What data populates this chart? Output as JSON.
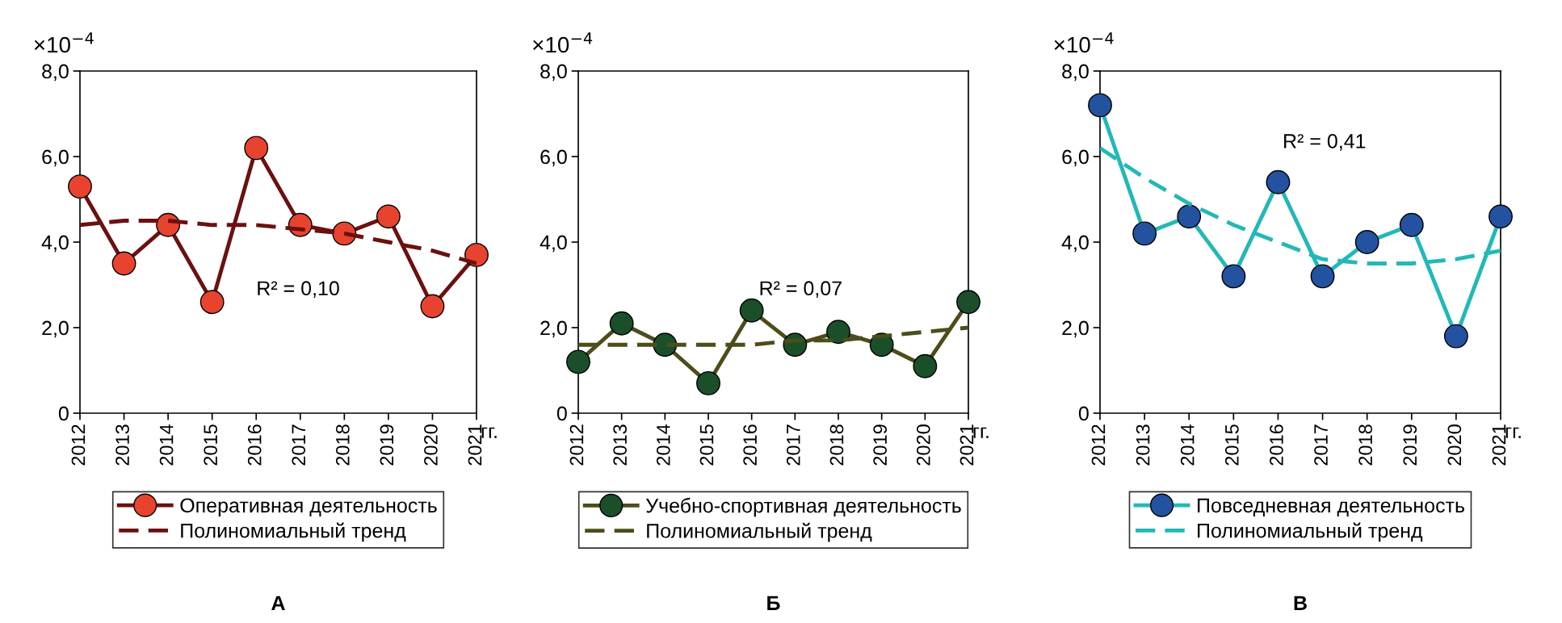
{
  "chart_data": [
    {
      "type": "line",
      "title": "А",
      "xlabel": "гг.",
      "ylabel": "×10$^{−4}$",
      "categories": [
        "2012",
        "2013",
        "2014",
        "2015",
        "2016",
        "2017",
        "2018",
        "2019",
        "2020",
        "2021"
      ],
      "ylim": [
        0,
        8
      ],
      "yticks": [
        0,
        {
          "value": 2,
          "label": "2,0"
        },
        {
          "value": 4,
          "label": "4,0"
        },
        {
          "value": 6,
          "label": "6,0"
        },
        {
          "value": 8,
          "label": "8,0"
        }
      ],
      "grid": false,
      "legend": "bottom",
      "annotations": [
        "R² = 0,10"
      ],
      "series": [
        {
          "name": "Оперативная деятельность",
          "color": "#6b1010",
          "colors": [
            "#e8432e",
            "#e8432e",
            "#e8432e",
            "#e8432e",
            "#e8432e",
            "#e8432e",
            "#e8432e",
            "#e8432e",
            "#e8432e",
            "#e8432e"
          ],
          "marker": "circle",
          "line_style": "solid",
          "values": [
            5.3,
            3.5,
            4.4,
            2.6,
            6.2,
            4.4,
            4.2,
            4.6,
            2.5,
            3.7
          ]
        },
        {
          "name": "Полиномиальный тренд",
          "color": "#6b1010",
          "marker": "none",
          "line_style": "dashed",
          "values": [
            4.4,
            4.5,
            4.5,
            4.4,
            4.4,
            4.3,
            4.2,
            4.0,
            3.8,
            3.5
          ]
        }
      ]
    },
    {
      "type": "line",
      "title": "Б",
      "xlabel": "гг.",
      "ylabel": "×10$^{−4}$",
      "categories": [
        "2012",
        "2013",
        "2014",
        "2015",
        "2016",
        "2017",
        "2018",
        "2019",
        "2020",
        "2021"
      ],
      "ylim": [
        0,
        8
      ],
      "yticks": [
        0,
        {
          "value": 2,
          "label": "2,0"
        },
        {
          "value": 4,
          "label": "4,0"
        },
        {
          "value": 6,
          "label": "6,0"
        },
        {
          "value": 8,
          "label": "8,0"
        }
      ],
      "grid": false,
      "legend": "bottom",
      "annotations": [
        "R² = 0,07"
      ],
      "series": [
        {
          "name": "Учебно-спортивная деятельность",
          "color": "#4d4d1a",
          "colors": [
            "#1a4f2a",
            "#1a4f2a",
            "#1a4f2a",
            "#1a4f2a",
            "#1a4f2a",
            "#1a4f2a",
            "#1a4f2a",
            "#1a4f2a",
            "#1a4f2a",
            "#1a4f2a"
          ],
          "marker": "circle",
          "line_style": "solid",
          "values": [
            1.2,
            2.1,
            1.6,
            0.7,
            2.4,
            1.6,
            1.9,
            1.6,
            1.1,
            2.6
          ]
        },
        {
          "name": "Полиномиальный тренд",
          "color": "#4d4d1a",
          "marker": "none",
          "line_style": "dashed",
          "values": [
            1.6,
            1.6,
            1.6,
            1.6,
            1.6,
            1.7,
            1.7,
            1.8,
            1.9,
            2.0
          ]
        }
      ]
    },
    {
      "type": "line",
      "title": "В",
      "xlabel": "гг.",
      "ylabel": "×10$^{−4}$",
      "categories": [
        "2012",
        "2013",
        "2014",
        "2015",
        "2016",
        "2017",
        "2018",
        "2019",
        "2020",
        "2021"
      ],
      "ylim": [
        0,
        8
      ],
      "yticks": [
        0,
        {
          "value": 2,
          "label": "2,0"
        },
        {
          "value": 4,
          "label": "4,0"
        },
        {
          "value": 6,
          "label": "6,0"
        },
        {
          "value": 8,
          "label": "8,0"
        }
      ],
      "grid": false,
      "legend": "bottom",
      "annotations": [
        "R² = 0,41"
      ],
      "series": [
        {
          "name": "Повседневная деятельность",
          "color": "#22b8b8",
          "colors": [
            "#2352a0",
            "#2352a0",
            "#2352a0",
            "#2352a0",
            "#2352a0",
            "#2352a0",
            "#2352a0",
            "#2352a0",
            "#2352a0",
            "#2352a0"
          ],
          "marker": "circle",
          "line_style": "solid",
          "values": [
            7.2,
            4.2,
            4.6,
            3.2,
            5.4,
            3.2,
            4.0,
            4.4,
            1.8,
            4.6
          ]
        },
        {
          "name": "Полиномиальный тренд",
          "color": "#22b8b8",
          "marker": "none",
          "line_style": "dashed",
          "values": [
            6.2,
            5.5,
            4.9,
            4.4,
            4.0,
            3.6,
            3.5,
            3.5,
            3.6,
            3.8
          ]
        }
      ]
    }
  ]
}
